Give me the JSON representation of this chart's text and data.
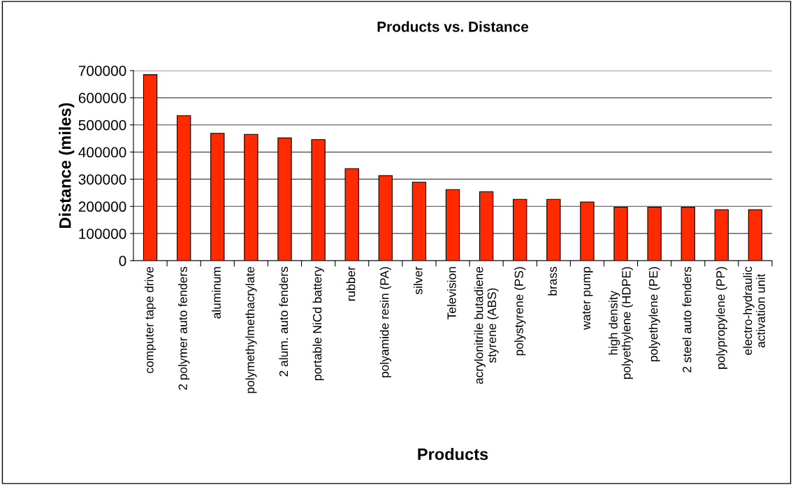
{
  "chart_data": {
    "type": "bar",
    "title": "Products vs. Distance",
    "xlabel": "Products",
    "ylabel": "Distance (miles)",
    "categories": [
      "computer tape drive",
      "2 polymer auto fenders",
      "aluminum",
      "polymethylmethacrylate",
      "2 alum. auto fenders",
      "portable NiCd battery",
      "rubber",
      "polyamide resin (PA)",
      "silver",
      "Television",
      "acrylonitrile butadiene\nstyrene (ABS)",
      "polystyrene (PS)",
      "brass",
      "water pump",
      "high density\npolyethylene (HDPE)",
      "polyethylene (PE)",
      "2 steel auto fenders",
      "polypropylene (PP)",
      "electro-hydraulic\nactivation unit"
    ],
    "values": [
      685000,
      534000,
      469000,
      465000,
      452000,
      446000,
      339000,
      313000,
      289000,
      262000,
      254000,
      226000,
      226000,
      216000,
      197000,
      197000,
      197000,
      188000,
      188000
    ],
    "color": "#ff2a00",
    "ylim": [
      0,
      700000
    ],
    "yticks": [
      0,
      100000,
      200000,
      300000,
      400000,
      500000,
      600000,
      700000
    ],
    "grid": "y",
    "legend": false
  }
}
